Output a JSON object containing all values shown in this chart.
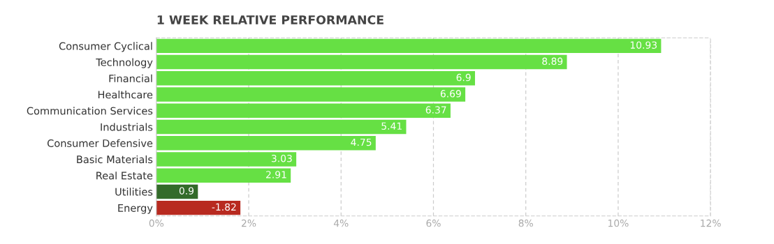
{
  "chart_data": {
    "type": "bar",
    "orientation": "horizontal",
    "title": "1 WEEK RELATIVE PERFORMANCE",
    "categories": [
      "Consumer Cyclical",
      "Technology",
      "Financial",
      "Healthcare",
      "Communication Services",
      "Industrials",
      "Consumer Defensive",
      "Basic Materials",
      "Real Estate",
      "Utilities",
      "Energy"
    ],
    "values": [
      10.93,
      8.89,
      6.9,
      6.69,
      6.37,
      5.41,
      4.75,
      3.03,
      2.91,
      0.9,
      -1.82
    ],
    "base": [
      0,
      0,
      0,
      0,
      0,
      0,
      0,
      0,
      0,
      0,
      1.82
    ],
    "colors": [
      "#66e044",
      "#66e044",
      "#66e044",
      "#66e044",
      "#66e044",
      "#66e044",
      "#66e044",
      "#66e044",
      "#66e044",
      "#336b2a",
      "#b82a20"
    ],
    "xlim": [
      0,
      12
    ],
    "xticks": [
      {
        "value": 0,
        "label": "0%"
      },
      {
        "value": 2,
        "label": "2%"
      },
      {
        "value": 4,
        "label": "4%"
      },
      {
        "value": 6,
        "label": "6%"
      },
      {
        "value": 8,
        "label": "8%"
      },
      {
        "value": 10,
        "label": "10%"
      },
      {
        "value": 12,
        "label": "12%"
      }
    ],
    "grid": "x",
    "data_labels": true
  }
}
